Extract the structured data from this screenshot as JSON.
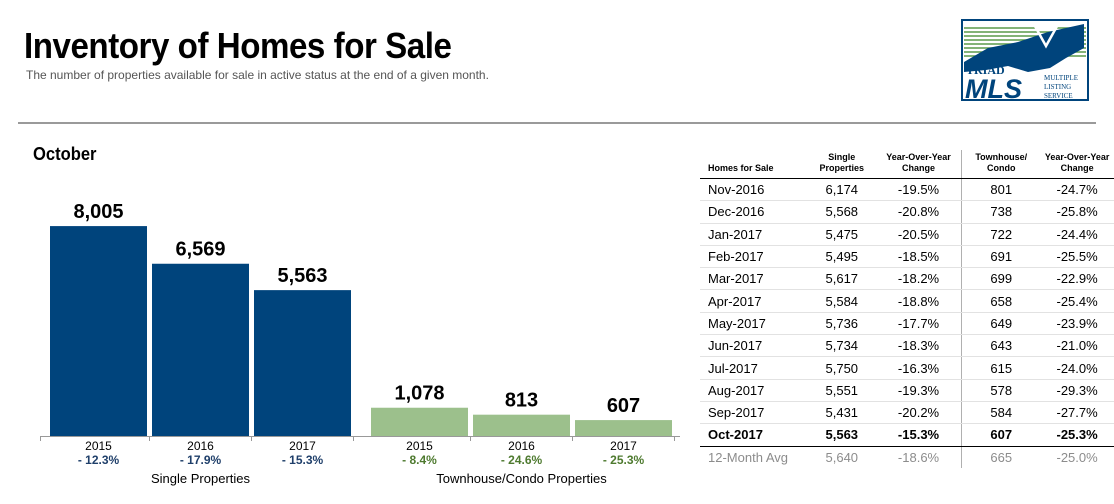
{
  "header": {
    "title": "Inventory of Homes for Sale",
    "subtitle": "The number of properties available for sale in active status at the end of a given month."
  },
  "logo": {
    "line1": "TRIAD",
    "line2": "MLS",
    "tag1": "MULTIPLE",
    "tag2": "LISTING",
    "tag3": "SERVICE"
  },
  "colors": {
    "single": "#00447c",
    "townhouse": "#9cc08c",
    "pct": "#1f3f6a",
    "pct_green": "#4e7a2f"
  },
  "chart_data": {
    "type": "bar",
    "title": "October",
    "ylim": [
      0,
      9000
    ],
    "groups": [
      {
        "name": "Single Properties",
        "categories": [
          "2015",
          "2016",
          "2017"
        ],
        "values": [
          8005,
          6569,
          5563
        ],
        "value_labels": [
          "8,005",
          "6,569",
          "5,563"
        ],
        "changes": [
          "- 12.3%",
          "- 17.9%",
          "- 15.3%"
        ]
      },
      {
        "name": "Townhouse/Condo Properties",
        "categories": [
          "2015",
          "2016",
          "2017"
        ],
        "values": [
          1078,
          813,
          607
        ],
        "value_labels": [
          "1,078",
          "813",
          "607"
        ],
        "changes": [
          "- 8.4%",
          "- 24.6%",
          "- 25.3%"
        ]
      }
    ]
  },
  "table": {
    "headers": [
      "Homes for Sale",
      "Single Properties",
      "Year-Over-Year Change",
      "Townhouse/ Condo",
      "Year-Over-Year Change"
    ],
    "rows": [
      [
        "Nov-2016",
        "6,174",
        "-19.5%",
        "801",
        "-24.7%"
      ],
      [
        "Dec-2016",
        "5,568",
        "-20.8%",
        "738",
        "-25.8%"
      ],
      [
        "Jan-2017",
        "5,475",
        "-20.5%",
        "722",
        "-24.4%"
      ],
      [
        "Feb-2017",
        "5,495",
        "-18.5%",
        "691",
        "-25.5%"
      ],
      [
        "Mar-2017",
        "5,617",
        "-18.2%",
        "699",
        "-22.9%"
      ],
      [
        "Apr-2017",
        "5,584",
        "-18.8%",
        "658",
        "-25.4%"
      ],
      [
        "May-2017",
        "5,736",
        "-17.7%",
        "649",
        "-23.9%"
      ],
      [
        "Jun-2017",
        "5,734",
        "-18.3%",
        "643",
        "-21.0%"
      ],
      [
        "Jul-2017",
        "5,750",
        "-16.3%",
        "615",
        "-24.0%"
      ],
      [
        "Aug-2017",
        "5,551",
        "-19.3%",
        "578",
        "-29.3%"
      ],
      [
        "Sep-2017",
        "5,431",
        "-20.2%",
        "584",
        "-27.7%"
      ],
      [
        "Oct-2017",
        "5,563",
        "-15.3%",
        "607",
        "-25.3%"
      ],
      [
        "12-Month Avg",
        "5,640",
        "-18.6%",
        "665",
        "-25.0%"
      ]
    ]
  }
}
